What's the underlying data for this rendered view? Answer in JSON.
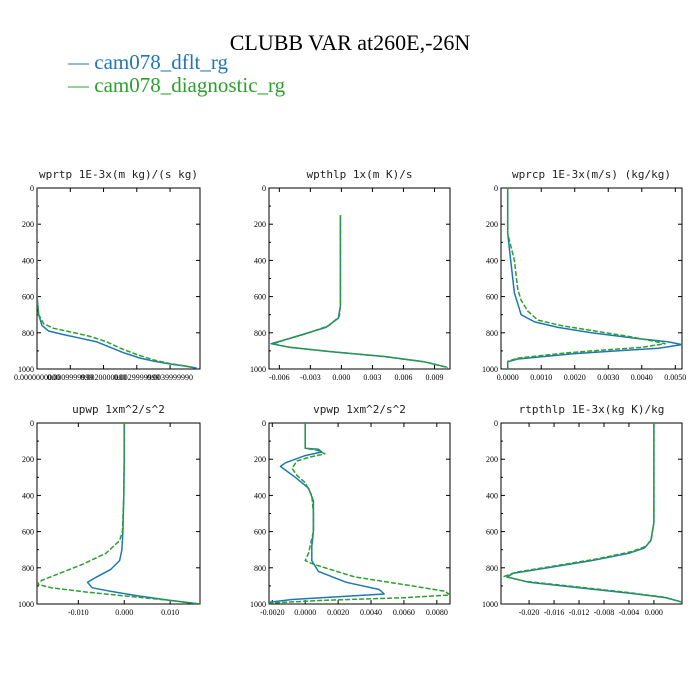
{
  "title": "CLUBB VAR at260E,-26N",
  "legend": [
    {
      "label": "— cam078_dflt_rg",
      "color": "#1f77b4"
    },
    {
      "label": "— cam078_diagnostic_rg",
      "color": "#2ca02c"
    }
  ],
  "colors": {
    "series_0": "#1f77b4",
    "series_1": "#2ca02c",
    "axis": "#000000"
  },
  "chart_data": [
    {
      "type": "line",
      "title": "wprtp  1E-3x(m kg)/(s kg)",
      "xlim": [
        0.0,
        0.0049
      ],
      "ylim": [
        1000,
        0
      ],
      "xticks": [
        0.0,
        0.001,
        0.002,
        0.003,
        0.004
      ],
      "xtick_labels": [
        "0.0000000000",
        "0.0009999999",
        "0.0020000000",
        "0.0029999999",
        "0.0039999990"
      ],
      "yticks": [
        0,
        200,
        400,
        600,
        800,
        1000
      ],
      "ytick_labels": [
        "0",
        "200",
        "400",
        "600",
        "800",
        "1000"
      ],
      "series": [
        {
          "points": [
            [
              0.0,
              0
            ],
            [
              0.0,
              300
            ],
            [
              0.0,
              600
            ],
            [
              5e-05,
              700
            ],
            [
              0.00015,
              760
            ],
            [
              0.00035,
              790
            ],
            [
              0.0008,
              810
            ],
            [
              0.0013,
              830
            ],
            [
              0.0018,
              850
            ],
            [
              0.0022,
              880
            ],
            [
              0.0026,
              910
            ],
            [
              0.0031,
              940
            ],
            [
              0.0036,
              960
            ],
            [
              0.0041,
              975
            ],
            [
              0.0045,
              985
            ],
            [
              0.0048,
              995
            ]
          ]
        },
        {
          "points": [
            [
              0.0,
              0
            ],
            [
              0.0,
              300
            ],
            [
              0.0,
              600
            ],
            [
              5e-05,
              700
            ],
            [
              0.0002,
              750
            ],
            [
              0.0005,
              775
            ],
            [
              0.001,
              795
            ],
            [
              0.0016,
              820
            ],
            [
              0.0021,
              850
            ],
            [
              0.0025,
              885
            ],
            [
              0.003,
              920
            ],
            [
              0.0035,
              950
            ],
            [
              0.004,
              970
            ],
            [
              0.0044,
              982
            ],
            [
              0.0047,
              992
            ]
          ]
        }
      ]
    },
    {
      "type": "line",
      "title": "wpthlp  1x(m K)/s",
      "xlim": [
        -0.007,
        0.0105
      ],
      "ylim": [
        1000,
        0
      ],
      "xticks": [
        -0.006,
        -0.003,
        0.0,
        0.003,
        0.006,
        0.009
      ],
      "xtick_labels": [
        "-0.006",
        "-0.003",
        "0.000",
        "0.003",
        "0.006",
        "0.009"
      ],
      "yticks": [
        0,
        200,
        400,
        600,
        800,
        1000
      ],
      "ytick_labels": [
        "0",
        "200",
        "400",
        "600",
        "800",
        "1000"
      ],
      "series": [
        {
          "points": [
            [
              -0.0001,
              150
            ],
            [
              -0.0001,
              300
            ],
            [
              -0.0001,
              500
            ],
            [
              -0.0001,
              650
            ],
            [
              -0.0003,
              720
            ],
            [
              -0.0015,
              770
            ],
            [
              -0.0038,
              810
            ],
            [
              -0.0058,
              845
            ],
            [
              -0.0068,
              860
            ],
            [
              -0.005,
              880
            ],
            [
              -0.001,
              905
            ],
            [
              0.004,
              930
            ],
            [
              0.008,
              960
            ],
            [
              0.0102,
              990
            ]
          ]
        },
        {
          "points": [
            [
              -0.0001,
              150
            ],
            [
              -0.0001,
              300
            ],
            [
              -0.0001,
              500
            ],
            [
              -0.0001,
              650
            ],
            [
              -0.0002,
              710
            ],
            [
              -0.0012,
              760
            ],
            [
              -0.0034,
              805
            ],
            [
              -0.0055,
              840
            ],
            [
              -0.0066,
              862
            ],
            [
              -0.0048,
              882
            ],
            [
              -0.0008,
              905
            ],
            [
              0.0042,
              932
            ],
            [
              0.0082,
              962
            ],
            [
              0.0103,
              992
            ]
          ]
        }
      ]
    },
    {
      "type": "line",
      "title": "wprcp  1E-3x(m/s) (kg/kg)",
      "xlim": [
        -0.0002,
        0.0052
      ],
      "ylim": [
        1000,
        0
      ],
      "xticks": [
        0.0,
        0.001,
        0.002,
        0.003,
        0.004,
        0.005
      ],
      "xtick_labels": [
        "0.0000",
        "0.0010",
        "0.0020",
        "0.0030",
        "0.0040",
        "0.0050"
      ],
      "yticks": [
        0,
        200,
        400,
        600,
        800,
        1000
      ],
      "ytick_labels": [
        "0",
        "200",
        "400",
        "600",
        "800",
        "1000"
      ],
      "series": [
        {
          "points": [
            [
              0.0,
              0
            ],
            [
              0.0,
              250
            ],
            [
              0.0001,
              420
            ],
            [
              0.0002,
              580
            ],
            [
              0.0003,
              640
            ],
            [
              0.0004,
              700
            ],
            [
              0.0008,
              740
            ],
            [
              0.0015,
              770
            ],
            [
              0.0025,
              800
            ],
            [
              0.0038,
              830
            ],
            [
              0.0048,
              850
            ],
            [
              0.0052,
              865
            ],
            [
              0.0045,
              885
            ],
            [
              0.002,
              915
            ],
            [
              0.0003,
              945
            ],
            [
              0.0,
              960
            ],
            [
              0.0,
              1000
            ]
          ]
        },
        {
          "points": [
            [
              0.0,
              0
            ],
            [
              0.0,
              250
            ],
            [
              0.0002,
              400
            ],
            [
              0.0003,
              560
            ],
            [
              0.0004,
              620
            ],
            [
              0.0006,
              680
            ],
            [
              0.0009,
              730
            ],
            [
              0.0016,
              760
            ],
            [
              0.0026,
              790
            ],
            [
              0.0036,
              820
            ],
            [
              0.0044,
              848
            ],
            [
              0.0047,
              860
            ],
            [
              0.004,
              880
            ],
            [
              0.0018,
              910
            ],
            [
              0.0003,
              940
            ],
            [
              0.0,
              958
            ],
            [
              0.0,
              1000
            ]
          ]
        }
      ]
    },
    {
      "type": "line",
      "title": "upwp  1xm^2/s^2",
      "xlim": [
        -0.019,
        0.0165
      ],
      "ylim": [
        1000,
        0
      ],
      "xticks": [
        -0.01,
        0.0,
        0.01
      ],
      "xtick_labels": [
        "-0.010",
        "0.000",
        "0.010"
      ],
      "yticks": [
        0,
        200,
        400,
        600,
        800,
        1000
      ],
      "ytick_labels": [
        "0",
        "200",
        "400",
        "600",
        "800",
        "1000"
      ],
      "series": [
        {
          "points": [
            [
              0.0,
              0
            ],
            [
              0.0,
              200
            ],
            [
              -0.0001,
              400
            ],
            [
              -0.0003,
              600
            ],
            [
              -0.0005,
              700
            ],
            [
              -0.001,
              760
            ],
            [
              -0.003,
              810
            ],
            [
              -0.006,
              850
            ],
            [
              -0.008,
              880
            ],
            [
              -0.007,
              910
            ],
            [
              -0.003,
              930
            ],
            [
              0.003,
              955
            ],
            [
              0.01,
              980
            ],
            [
              0.0165,
              1000
            ]
          ]
        },
        {
          "points": [
            [
              0.0,
              0
            ],
            [
              0.0,
              200
            ],
            [
              -0.0001,
              400
            ],
            [
              -0.0004,
              600
            ],
            [
              -0.001,
              650
            ],
            [
              -0.004,
              720
            ],
            [
              -0.009,
              780
            ],
            [
              -0.014,
              830
            ],
            [
              -0.018,
              870
            ],
            [
              -0.019,
              890
            ],
            [
              -0.016,
              910
            ],
            [
              -0.008,
              935
            ],
            [
              0.002,
              960
            ],
            [
              0.01,
              980
            ],
            [
              0.0165,
              1000
            ]
          ]
        }
      ]
    },
    {
      "type": "line",
      "title": "vpwp  1xm^2/s^2",
      "xlim": [
        -0.0022,
        0.0088
      ],
      "ylim": [
        1000,
        0
      ],
      "xticks": [
        -0.002,
        0.0,
        0.002,
        0.004,
        0.006,
        0.008
      ],
      "xtick_labels": [
        "-0.0020",
        "0.0000",
        "0.0020",
        "0.0040",
        "0.0060",
        "0.0080"
      ],
      "yticks": [
        0,
        200,
        400,
        600,
        800,
        1000
      ],
      "ytick_labels": [
        "0",
        "200",
        "400",
        "600",
        "800",
        "1000"
      ],
      "series": [
        {
          "points": [
            [
              0.0,
              0
            ],
            [
              0.0,
              100
            ],
            [
              0.0,
              140
            ],
            [
              0.0008,
              145
            ],
            [
              0.001,
              160
            ],
            [
              0.0,
              180
            ],
            [
              -0.0012,
              220
            ],
            [
              -0.0015,
              240
            ],
            [
              -0.0012,
              260
            ],
            [
              -0.0006,
              300
            ],
            [
              0.0002,
              360
            ],
            [
              0.0005,
              430
            ],
            [
              0.0005,
              520
            ],
            [
              0.0005,
              600
            ],
            [
              0.0004,
              680
            ],
            [
              0.0004,
              760
            ],
            [
              0.0008,
              820
            ],
            [
              0.0025,
              880
            ],
            [
              0.0045,
              920
            ],
            [
              0.0048,
              945
            ],
            [
              0.002,
              960
            ],
            [
              -0.0008,
              975
            ],
            [
              -0.0022,
              990
            ]
          ]
        },
        {
          "points": [
            [
              0.0,
              0
            ],
            [
              0.0,
              100
            ],
            [
              0.0,
              140
            ],
            [
              0.0007,
              150
            ],
            [
              0.0012,
              170
            ],
            [
              0.0002,
              190
            ],
            [
              -0.0005,
              210
            ],
            [
              -0.0008,
              250
            ],
            [
              -0.0005,
              290
            ],
            [
              0.0,
              330
            ],
            [
              0.0004,
              400
            ],
            [
              0.0005,
              500
            ],
            [
              0.0005,
              600
            ],
            [
              0.0002,
              720
            ],
            [
              0.0,
              760
            ],
            [
              0.0005,
              780
            ],
            [
              0.003,
              850
            ],
            [
              0.0065,
              900
            ],
            [
              0.0085,
              930
            ],
            [
              0.0088,
              950
            ],
            [
              0.006,
              965
            ],
            [
              0.001,
              980
            ],
            [
              -0.0022,
              995
            ]
          ]
        }
      ]
    },
    {
      "type": "line",
      "title": "rtpthlp  1E-3x(kg K)/kg",
      "xlim": [
        -0.0245,
        0.0045
      ],
      "ylim": [
        1000,
        0
      ],
      "xticks": [
        -0.02,
        -0.016,
        -0.012,
        -0.008,
        -0.004,
        0.0
      ],
      "xtick_labels": [
        "-0.020",
        "-0.016",
        "-0.012",
        "-0.008",
        "-0.004",
        "0.000"
      ],
      "yticks": [
        0,
        200,
        400,
        600,
        800,
        1000
      ],
      "ytick_labels": [
        "0",
        "200",
        "400",
        "600",
        "800",
        "1000"
      ],
      "series": [
        {
          "points": [
            [
              0.0,
              0
            ],
            [
              0.0,
              200
            ],
            [
              0.0,
              400
            ],
            [
              0.0,
              550
            ],
            [
              -0.0005,
              650
            ],
            [
              -0.0015,
              690
            ],
            [
              -0.004,
              720
            ],
            [
              -0.01,
              760
            ],
            [
              -0.017,
              800
            ],
            [
              -0.0225,
              830
            ],
            [
              -0.0235,
              850
            ],
            [
              -0.02,
              880
            ],
            [
              -0.012,
              910
            ],
            [
              -0.004,
              940
            ],
            [
              0.002,
              965
            ],
            [
              0.0045,
              990
            ]
          ]
        },
        {
          "points": [
            [
              0.0,
              0
            ],
            [
              0.0,
              200
            ],
            [
              0.0,
              400
            ],
            [
              0.0,
              550
            ],
            [
              -0.0004,
              640
            ],
            [
              -0.0012,
              680
            ],
            [
              -0.0035,
              710
            ],
            [
              -0.009,
              750
            ],
            [
              -0.016,
              790
            ],
            [
              -0.0222,
              825
            ],
            [
              -0.024,
              848
            ],
            [
              -0.0205,
              875
            ],
            [
              -0.0125,
              905
            ],
            [
              -0.0045,
              935
            ],
            [
              0.0015,
              962
            ],
            [
              0.0045,
              990
            ]
          ]
        }
      ]
    }
  ]
}
